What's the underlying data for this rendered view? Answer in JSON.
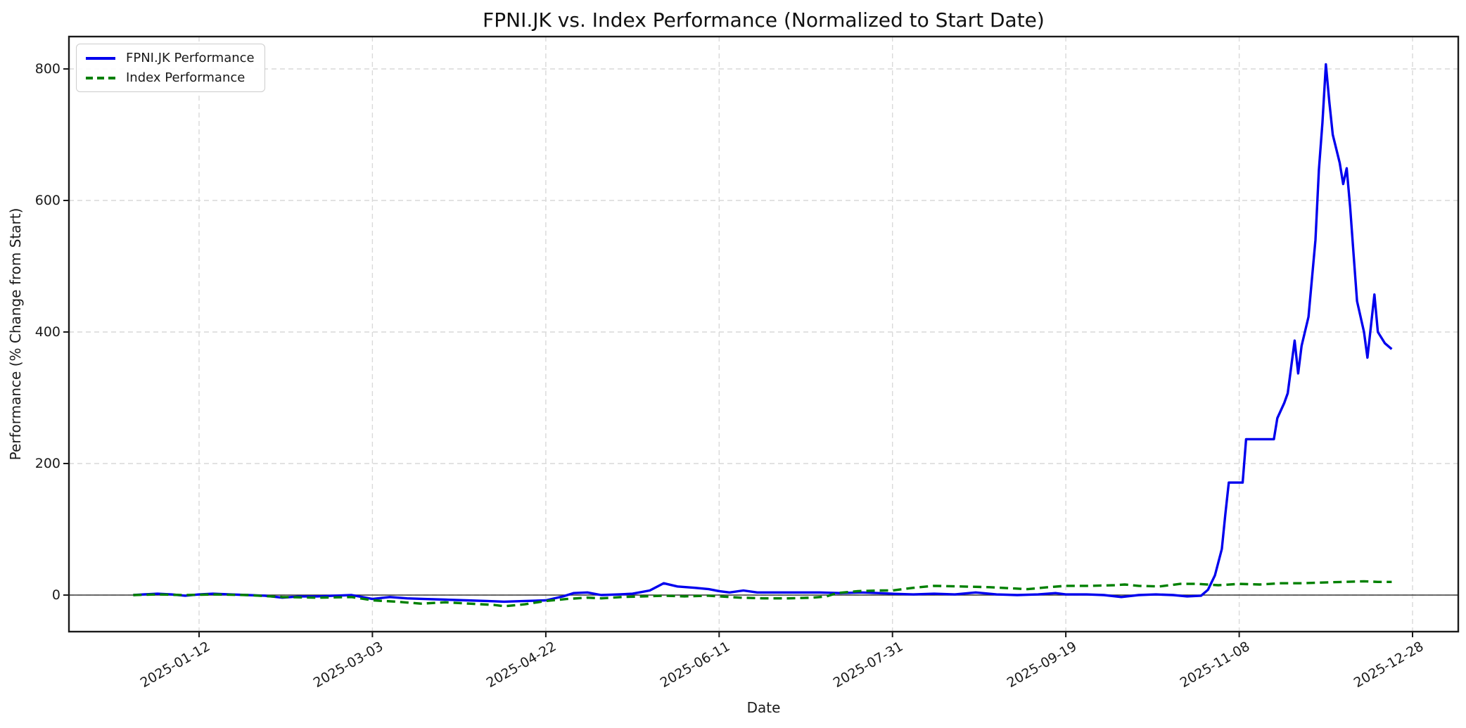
{
  "chart_data": {
    "type": "line",
    "title": "FPNI.JK vs. Index Performance (Normalized to Start Date)",
    "xlabel": "Date",
    "ylabel": "Performance (% Change from Start)",
    "x_tick_labels": [
      "2025-01-12",
      "2025-03-03",
      "2025-04-22",
      "2025-06-11",
      "2025-07-31",
      "2025-09-19",
      "2025-11-08",
      "2025-12-28"
    ],
    "y_ticks": [
      0,
      200,
      400,
      600,
      800
    ],
    "ylim": [
      -56,
      850
    ],
    "grid": true,
    "grid_style": "dashed",
    "grid_color": "#d9d9d9",
    "zero_line": true,
    "zero_line_color": "#3a3a3a",
    "legend_position": "upper-left",
    "background": "#ffffff",
    "series": [
      {
        "name": "FPNI.JK Performance",
        "color": "#0000ee",
        "style": "solid",
        "points": [
          [
            "2024-12-24",
            0
          ],
          [
            "2024-12-27",
            1
          ],
          [
            "2024-12-31",
            2
          ],
          [
            "2025-01-04",
            1
          ],
          [
            "2025-01-08",
            -1
          ],
          [
            "2025-01-12",
            1
          ],
          [
            "2025-01-16",
            2
          ],
          [
            "2025-01-21",
            1
          ],
          [
            "2025-01-26",
            0
          ],
          [
            "2025-01-31",
            -1
          ],
          [
            "2025-02-05",
            -4
          ],
          [
            "2025-02-10",
            -2
          ],
          [
            "2025-02-15",
            -2
          ],
          [
            "2025-02-20",
            -1
          ],
          [
            "2025-02-25",
            0
          ],
          [
            "2025-03-03",
            -6
          ],
          [
            "2025-03-08",
            -3
          ],
          [
            "2025-03-13",
            -5
          ],
          [
            "2025-03-18",
            -6
          ],
          [
            "2025-03-24",
            -7
          ],
          [
            "2025-03-30",
            -8
          ],
          [
            "2025-04-05",
            -9
          ],
          [
            "2025-04-10",
            -10
          ],
          [
            "2025-04-16",
            -9
          ],
          [
            "2025-04-22",
            -8
          ],
          [
            "2025-04-27",
            -2
          ],
          [
            "2025-04-30",
            3
          ],
          [
            "2025-05-04",
            4
          ],
          [
            "2025-05-08",
            0
          ],
          [
            "2025-05-13",
            1
          ],
          [
            "2025-05-17",
            2
          ],
          [
            "2025-05-22",
            7
          ],
          [
            "2025-05-26",
            18
          ],
          [
            "2025-05-30",
            13
          ],
          [
            "2025-06-04",
            11
          ],
          [
            "2025-06-08",
            9
          ],
          [
            "2025-06-11",
            6
          ],
          [
            "2025-06-14",
            4
          ],
          [
            "2025-06-18",
            7
          ],
          [
            "2025-06-22",
            4
          ],
          [
            "2025-06-28",
            4
          ],
          [
            "2025-07-04",
            4
          ],
          [
            "2025-07-10",
            4
          ],
          [
            "2025-07-16",
            3
          ],
          [
            "2025-07-22",
            4
          ],
          [
            "2025-07-27",
            3
          ],
          [
            "2025-07-31",
            2
          ],
          [
            "2025-08-06",
            1
          ],
          [
            "2025-08-12",
            2
          ],
          [
            "2025-08-18",
            1
          ],
          [
            "2025-08-24",
            4
          ],
          [
            "2025-08-30",
            1
          ],
          [
            "2025-09-05",
            0
          ],
          [
            "2025-09-11",
            1
          ],
          [
            "2025-09-16",
            3
          ],
          [
            "2025-09-19",
            1
          ],
          [
            "2025-09-25",
            1
          ],
          [
            "2025-09-30",
            0
          ],
          [
            "2025-10-05",
            -3
          ],
          [
            "2025-10-10",
            0
          ],
          [
            "2025-10-15",
            1
          ],
          [
            "2025-10-20",
            0
          ],
          [
            "2025-10-24",
            -2
          ],
          [
            "2025-10-28",
            -1
          ],
          [
            "2025-10-30",
            8
          ],
          [
            "2025-11-01",
            30
          ],
          [
            "2025-11-03",
            70
          ],
          [
            "2025-11-04",
            123
          ],
          [
            "2025-11-05",
            171
          ],
          [
            "2025-11-09",
            171
          ],
          [
            "2025-11-10",
            237
          ],
          [
            "2025-11-18",
            237
          ],
          [
            "2025-11-19",
            269
          ],
          [
            "2025-11-21",
            292
          ],
          [
            "2025-11-22",
            307
          ],
          [
            "2025-11-24",
            387
          ],
          [
            "2025-11-25",
            337
          ],
          [
            "2025-11-26",
            379
          ],
          [
            "2025-11-28",
            423
          ],
          [
            "2025-11-30",
            540
          ],
          [
            "2025-12-01",
            647
          ],
          [
            "2025-12-02",
            718
          ],
          [
            "2025-12-03",
            807
          ],
          [
            "2025-12-04",
            750
          ],
          [
            "2025-12-05",
            700
          ],
          [
            "2025-12-07",
            657
          ],
          [
            "2025-12-08",
            625
          ],
          [
            "2025-12-09",
            649
          ],
          [
            "2025-12-10",
            590
          ],
          [
            "2025-12-11",
            518
          ],
          [
            "2025-12-12",
            447
          ],
          [
            "2025-12-14",
            400
          ],
          [
            "2025-12-15",
            361
          ],
          [
            "2025-12-17",
            457
          ],
          [
            "2025-12-18",
            400
          ],
          [
            "2025-12-20",
            383
          ],
          [
            "2025-12-22",
            374
          ]
        ]
      },
      {
        "name": "Index Performance",
        "color": "#008000",
        "style": "dashed",
        "points": [
          [
            "2024-12-24",
            0
          ],
          [
            "2024-12-31",
            1
          ],
          [
            "2025-01-08",
            0
          ],
          [
            "2025-01-16",
            1
          ],
          [
            "2025-01-26",
            0
          ],
          [
            "2025-02-05",
            -3
          ],
          [
            "2025-02-15",
            -4
          ],
          [
            "2025-02-25",
            -3
          ],
          [
            "2025-03-03",
            -8
          ],
          [
            "2025-03-10",
            -10
          ],
          [
            "2025-03-17",
            -13
          ],
          [
            "2025-03-24",
            -11
          ],
          [
            "2025-03-31",
            -13
          ],
          [
            "2025-04-07",
            -15
          ],
          [
            "2025-04-10",
            -17
          ],
          [
            "2025-04-16",
            -14
          ],
          [
            "2025-04-22",
            -9
          ],
          [
            "2025-04-28",
            -6
          ],
          [
            "2025-05-04",
            -4
          ],
          [
            "2025-05-08",
            -5
          ],
          [
            "2025-05-14",
            -3
          ],
          [
            "2025-05-20",
            -2
          ],
          [
            "2025-05-26",
            -1
          ],
          [
            "2025-06-01",
            -2
          ],
          [
            "2025-06-08",
            -1
          ],
          [
            "2025-06-11",
            -2
          ],
          [
            "2025-06-17",
            -4
          ],
          [
            "2025-06-24",
            -5
          ],
          [
            "2025-07-01",
            -5
          ],
          [
            "2025-07-08",
            -4
          ],
          [
            "2025-07-12",
            -2
          ],
          [
            "2025-07-15",
            3
          ],
          [
            "2025-07-21",
            6
          ],
          [
            "2025-07-27",
            7
          ],
          [
            "2025-07-31",
            7
          ],
          [
            "2025-08-06",
            11
          ],
          [
            "2025-08-12",
            14
          ],
          [
            "2025-08-20",
            13
          ],
          [
            "2025-08-28",
            12
          ],
          [
            "2025-09-04",
            10
          ],
          [
            "2025-09-08",
            9
          ],
          [
            "2025-09-14",
            12
          ],
          [
            "2025-09-19",
            14
          ],
          [
            "2025-09-26",
            14
          ],
          [
            "2025-10-03",
            15
          ],
          [
            "2025-10-06",
            16
          ],
          [
            "2025-10-10",
            14
          ],
          [
            "2025-10-16",
            13
          ],
          [
            "2025-10-22",
            17
          ],
          [
            "2025-10-27",
            17
          ],
          [
            "2025-11-02",
            15
          ],
          [
            "2025-11-08",
            17
          ],
          [
            "2025-11-14",
            16
          ],
          [
            "2025-11-20",
            18
          ],
          [
            "2025-11-26",
            18
          ],
          [
            "2025-12-02",
            19
          ],
          [
            "2025-12-08",
            20
          ],
          [
            "2025-12-14",
            21
          ],
          [
            "2025-12-18",
            20
          ],
          [
            "2025-12-22",
            20
          ]
        ]
      }
    ]
  }
}
